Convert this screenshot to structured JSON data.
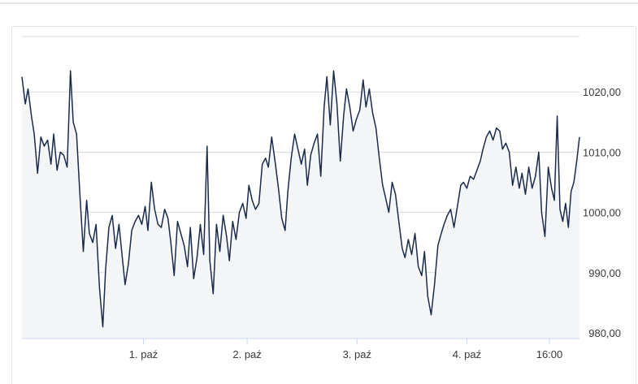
{
  "chart_data": {
    "type": "area",
    "title": "",
    "xlabel": "",
    "ylabel": "",
    "ylim": [
      980,
      1027
    ],
    "grid": true,
    "x_ticks": [
      {
        "label": "1. paź",
        "t": 0.218
      },
      {
        "label": "2. paź",
        "t": 0.404
      },
      {
        "label": "3. paź",
        "t": 0.601
      },
      {
        "label": "4. paź",
        "t": 0.798
      },
      {
        "label": "16:00",
        "t": 0.946
      }
    ],
    "y_ticks": [
      {
        "value": 980,
        "label": "980,00"
      },
      {
        "value": 990,
        "label": "990,00"
      },
      {
        "value": 1000,
        "label": "1000,00"
      },
      {
        "value": 1010,
        "label": "1010,00"
      },
      {
        "value": 1020,
        "label": "1020,00"
      }
    ],
    "series": [
      {
        "color": "#1b2b4b",
        "fill": "#f4f5f7",
        "points": [
          [
            0.0,
            1022.5
          ],
          [
            0.006,
            1018.0
          ],
          [
            0.011,
            1020.5
          ],
          [
            0.017,
            1016.0
          ],
          [
            0.022,
            1013.0
          ],
          [
            0.028,
            1006.5
          ],
          [
            0.034,
            1012.5
          ],
          [
            0.04,
            1011.0
          ],
          [
            0.046,
            1012.0
          ],
          [
            0.052,
            1008.0
          ],
          [
            0.057,
            1013.0
          ],
          [
            0.063,
            1007.0
          ],
          [
            0.069,
            1010.0
          ],
          [
            0.075,
            1009.5
          ],
          [
            0.081,
            1007.5
          ],
          [
            0.087,
            1023.5
          ],
          [
            0.092,
            1015.0
          ],
          [
            0.098,
            1013.0
          ],
          [
            0.104,
            1003.0
          ],
          [
            0.11,
            993.5
          ],
          [
            0.116,
            1002.0
          ],
          [
            0.121,
            996.5
          ],
          [
            0.127,
            995.0
          ],
          [
            0.133,
            998.0
          ],
          [
            0.139,
            987.5
          ],
          [
            0.145,
            981.0
          ],
          [
            0.15,
            990.5
          ],
          [
            0.156,
            997.5
          ],
          [
            0.162,
            999.5
          ],
          [
            0.168,
            994.0
          ],
          [
            0.174,
            998.0
          ],
          [
            0.18,
            992.5
          ],
          [
            0.185,
            988.0
          ],
          [
            0.191,
            991.5
          ],
          [
            0.197,
            997.0
          ],
          [
            0.203,
            998.5
          ],
          [
            0.209,
            999.5
          ],
          [
            0.215,
            998.0
          ],
          [
            0.221,
            1001.0
          ],
          [
            0.226,
            997.0
          ],
          [
            0.232,
            1005.0
          ],
          [
            0.238,
            1000.5
          ],
          [
            0.244,
            998.0
          ],
          [
            0.25,
            997.5
          ],
          [
            0.256,
            1000.5
          ],
          [
            0.262,
            999.0
          ],
          [
            0.267,
            995.0
          ],
          [
            0.273,
            989.5
          ],
          [
            0.279,
            998.5
          ],
          [
            0.285,
            996.5
          ],
          [
            0.291,
            994.5
          ],
          [
            0.297,
            991.0
          ],
          [
            0.302,
            997.5
          ],
          [
            0.308,
            989.0
          ],
          [
            0.314,
            992.5
          ],
          [
            0.32,
            998.0
          ],
          [
            0.326,
            993.0
          ],
          [
            0.332,
            1011.0
          ],
          [
            0.337,
            992.0
          ],
          [
            0.343,
            986.5
          ],
          [
            0.349,
            998.0
          ],
          [
            0.355,
            993.5
          ],
          [
            0.361,
            999.5
          ],
          [
            0.367,
            996.0
          ],
          [
            0.372,
            992.0
          ],
          [
            0.378,
            998.5
          ],
          [
            0.384,
            995.5
          ],
          [
            0.39,
            1000.0
          ],
          [
            0.396,
            1001.5
          ],
          [
            0.402,
            999.0
          ],
          [
            0.407,
            1004.5
          ],
          [
            0.413,
            1002.0
          ],
          [
            0.419,
            1000.5
          ],
          [
            0.425,
            1001.5
          ],
          [
            0.431,
            1008.0
          ],
          [
            0.437,
            1009.0
          ],
          [
            0.442,
            1007.5
          ],
          [
            0.448,
            1012.5
          ],
          [
            0.454,
            1008.5
          ],
          [
            0.46,
            1004.0
          ],
          [
            0.466,
            999.0
          ],
          [
            0.472,
            997.0
          ],
          [
            0.477,
            1003.5
          ],
          [
            0.483,
            1009.0
          ],
          [
            0.489,
            1013.0
          ],
          [
            0.495,
            1010.5
          ],
          [
            0.501,
            1008.0
          ],
          [
            0.507,
            1010.5
          ],
          [
            0.512,
            1004.5
          ],
          [
            0.518,
            1009.5
          ],
          [
            0.524,
            1011.5
          ],
          [
            0.53,
            1013.0
          ],
          [
            0.536,
            1006.0
          ],
          [
            0.542,
            1017.5
          ],
          [
            0.547,
            1022.5
          ],
          [
            0.553,
            1014.5
          ],
          [
            0.559,
            1023.5
          ],
          [
            0.565,
            1018.0
          ],
          [
            0.571,
            1008.5
          ],
          [
            0.577,
            1016.0
          ],
          [
            0.582,
            1020.5
          ],
          [
            0.588,
            1017.5
          ],
          [
            0.594,
            1013.5
          ],
          [
            0.6,
            1015.5
          ],
          [
            0.606,
            1017.0
          ],
          [
            0.612,
            1022.0
          ],
          [
            0.617,
            1017.5
          ],
          [
            0.623,
            1020.5
          ],
          [
            0.629,
            1016.5
          ],
          [
            0.635,
            1014.0
          ],
          [
            0.641,
            1009.0
          ],
          [
            0.647,
            1004.5
          ],
          [
            0.652,
            1002.5
          ],
          [
            0.658,
            1000.0
          ],
          [
            0.664,
            1005.0
          ],
          [
            0.67,
            1003.0
          ],
          [
            0.676,
            998.5
          ],
          [
            0.682,
            994.0
          ],
          [
            0.687,
            992.5
          ],
          [
            0.693,
            995.5
          ],
          [
            0.699,
            993.0
          ],
          [
            0.705,
            996.5
          ],
          [
            0.711,
            991.0
          ],
          [
            0.717,
            989.5
          ],
          [
            0.722,
            993.5
          ],
          [
            0.728,
            986.0
          ],
          [
            0.734,
            983.0
          ],
          [
            0.74,
            988.0
          ],
          [
            0.746,
            994.5
          ],
          [
            0.752,
            996.5
          ],
          [
            0.757,
            998.0
          ],
          [
            0.763,
            999.5
          ],
          [
            0.769,
            1000.5
          ],
          [
            0.775,
            997.5
          ],
          [
            0.781,
            1001.0
          ],
          [
            0.787,
            1004.5
          ],
          [
            0.792,
            1005.0
          ],
          [
            0.798,
            1004.0
          ],
          [
            0.804,
            1006.0
          ],
          [
            0.81,
            1005.5
          ],
          [
            0.816,
            1007.0
          ],
          [
            0.822,
            1008.5
          ],
          [
            0.827,
            1010.5
          ],
          [
            0.833,
            1012.5
          ],
          [
            0.839,
            1013.5
          ],
          [
            0.845,
            1012.0
          ],
          [
            0.851,
            1014.0
          ],
          [
            0.857,
            1013.5
          ],
          [
            0.862,
            1010.5
          ],
          [
            0.868,
            1011.5
          ],
          [
            0.874,
            1010.0
          ],
          [
            0.88,
            1004.5
          ],
          [
            0.886,
            1007.5
          ],
          [
            0.892,
            1004.0
          ],
          [
            0.897,
            1006.5
          ],
          [
            0.903,
            1003.0
          ],
          [
            0.909,
            1007.5
          ],
          [
            0.915,
            1004.0
          ],
          [
            0.921,
            1006.0
          ],
          [
            0.927,
            1010.0
          ],
          [
            0.932,
            1000.0
          ],
          [
            0.938,
            996.0
          ],
          [
            0.944,
            1007.5
          ],
          [
            0.95,
            1004.0
          ],
          [
            0.955,
            1002.0
          ],
          [
            0.96,
            1016.0
          ],
          [
            0.965,
            1000.5
          ],
          [
            0.97,
            998.5
          ],
          [
            0.975,
            1001.5
          ],
          [
            0.98,
            997.5
          ],
          [
            0.985,
            1003.5
          ],
          [
            0.99,
            1005.0
          ],
          [
            0.995,
            1008.5
          ],
          [
            1.0,
            1012.5
          ]
        ]
      }
    ]
  }
}
